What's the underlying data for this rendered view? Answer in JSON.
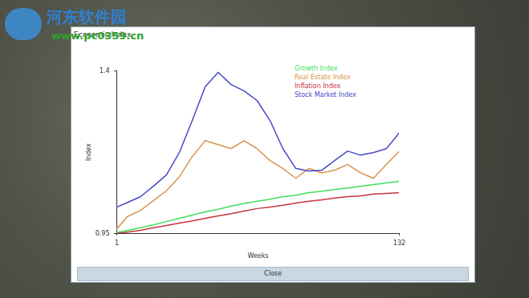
{
  "chart_data": {
    "type": "line",
    "title": "Economic Index",
    "x_label": "Weeks",
    "y_label": "Index",
    "annotations": [
      "Close",
      "河东软件园",
      "www.pc0359.cn"
    ],
    "x": [
      1,
      6,
      12,
      18,
      24,
      30,
      36,
      42,
      48,
      54,
      60,
      66,
      72,
      78,
      84,
      90,
      96,
      102,
      108,
      114,
      120,
      126,
      132
    ],
    "xlim": [
      1,
      132
    ],
    "xticks": [
      1,
      132
    ],
    "ylim": [
      0.95,
      1.4
    ],
    "yticks": [
      0.95,
      1.4
    ],
    "legend": "top-right",
    "series": [
      {
        "name": "Growth Index",
        "color": "#3ee05a",
        "values": [
          0.952,
          0.959,
          0.966,
          0.974,
          0.983,
          0.992,
          1.001,
          1.01,
          1.017,
          1.026,
          1.033,
          1.039,
          1.045,
          1.052,
          1.056,
          1.063,
          1.067,
          1.072,
          1.076,
          1.081,
          1.085,
          1.09,
          1.094
        ]
      },
      {
        "name": "Real Estate Index",
        "color": "#d9954b",
        "values": [
          0.963,
          0.997,
          1.014,
          1.041,
          1.068,
          1.107,
          1.163,
          1.207,
          1.196,
          1.185,
          1.207,
          1.185,
          1.152,
          1.13,
          1.103,
          1.13,
          1.118,
          1.125,
          1.141,
          1.118,
          1.103,
          1.141,
          1.178
        ]
      },
      {
        "name": "Inflation Index",
        "color": "#c8343a",
        "values": [
          0.95,
          0.954,
          0.959,
          0.966,
          0.972,
          0.979,
          0.985,
          0.992,
          0.999,
          1.005,
          1.012,
          1.019,
          1.023,
          1.028,
          1.034,
          1.039,
          1.043,
          1.048,
          1.052,
          1.054,
          1.059,
          1.061,
          1.063
        ]
      },
      {
        "name": "Stock Market Index",
        "color": "#4848c8",
        "values": [
          1.023,
          1.036,
          1.052,
          1.081,
          1.112,
          1.174,
          1.263,
          1.356,
          1.396,
          1.362,
          1.345,
          1.318,
          1.263,
          1.185,
          1.13,
          1.123,
          1.125,
          1.152,
          1.178,
          1.167,
          1.174,
          1.185,
          1.229
        ]
      }
    ]
  }
}
